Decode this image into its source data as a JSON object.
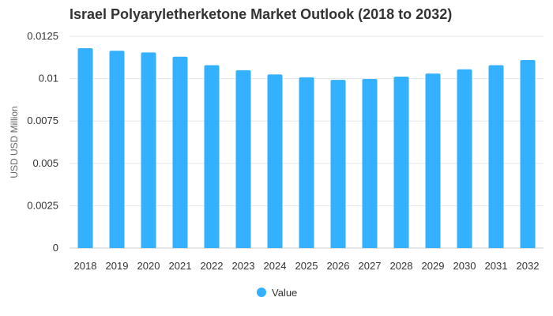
{
  "colors": {
    "bar": "#33b1ff",
    "grid": "#e6e6e6",
    "axis": "#cccccc"
  },
  "chart_data": {
    "type": "bar",
    "title": "Israel Polyaryletherketone Market Outlook (2018 to 2032)",
    "xlabel": "",
    "ylabel": "USD USD Million",
    "categories": [
      "2018",
      "2019",
      "2020",
      "2021",
      "2022",
      "2023",
      "2024",
      "2025",
      "2026",
      "2027",
      "2028",
      "2029",
      "2030",
      "2031",
      "2032"
    ],
    "series": [
      {
        "name": "Value",
        "values": [
          0.0118,
          0.01165,
          0.01155,
          0.0113,
          0.0108,
          0.0105,
          0.01025,
          0.01008,
          0.00993,
          0.00998,
          0.01012,
          0.0103,
          0.01055,
          0.0108,
          0.0111
        ]
      }
    ],
    "ylim": [
      0,
      0.0125
    ],
    "yticks": [
      "0",
      "0.0025",
      "0.005",
      "0.0075",
      "0.01",
      "0.0125"
    ],
    "grid": true,
    "legend": "bottom-center"
  }
}
